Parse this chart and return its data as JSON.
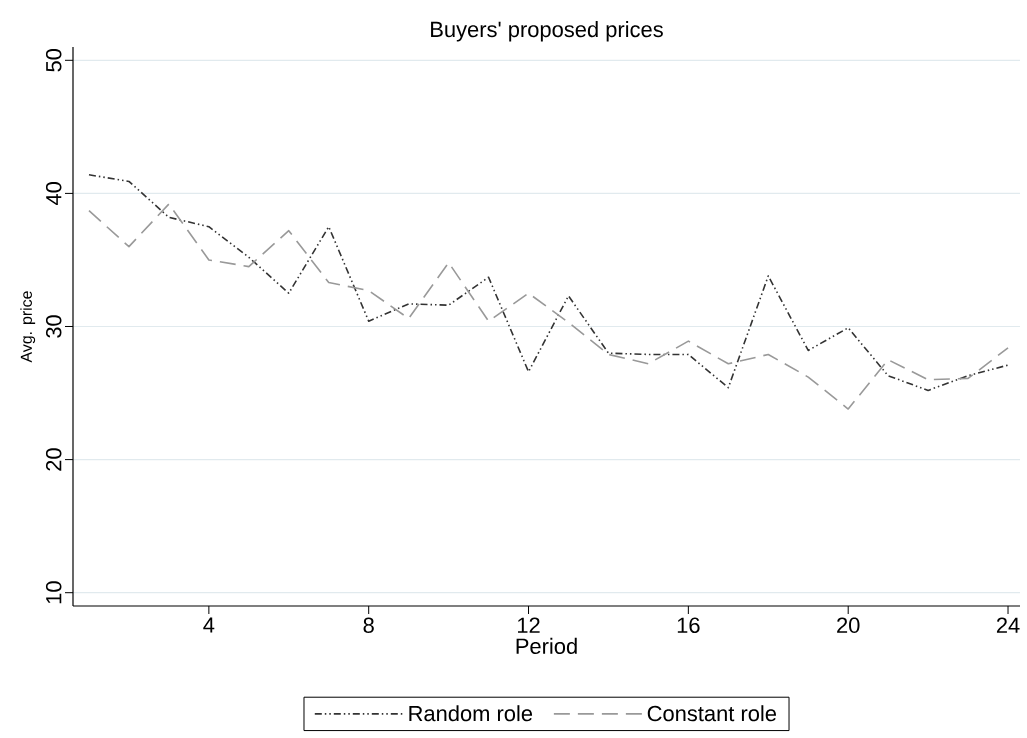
{
  "chart_data": {
    "type": "line",
    "title": "Buyers' proposed prices",
    "xlabel": "Period",
    "ylabel": "Avg. price",
    "x": [
      1,
      2,
      3,
      4,
      5,
      6,
      7,
      8,
      9,
      10,
      11,
      12,
      13,
      14,
      15,
      16,
      17,
      18,
      19,
      20,
      21,
      22,
      23,
      24
    ],
    "xlim": [
      0.6,
      24.3
    ],
    "ylim": [
      9,
      51
    ],
    "xticks": [
      4,
      8,
      12,
      16,
      20,
      24
    ],
    "yticks": [
      10,
      20,
      30,
      40,
      50
    ],
    "grid": "y",
    "legend": "bottom",
    "series": [
      {
        "name": "Random role",
        "color": "#333333",
        "line_style": "dotted",
        "values": [
          41.4,
          40.9,
          38.2,
          37.5,
          35.2,
          32.5,
          37.5,
          30.4,
          31.7,
          31.6,
          33.7,
          26.6,
          32.3,
          28.0,
          27.9,
          27.9,
          25.4,
          33.8,
          28.2,
          29.9,
          26.3,
          25.2,
          26.3,
          27.1
        ]
      },
      {
        "name": "Constant role",
        "color": "#999999",
        "line_style": "dashed",
        "values": [
          38.7,
          36.0,
          39.2,
          35.0,
          34.5,
          37.2,
          33.3,
          32.7,
          30.6,
          34.8,
          30.4,
          32.5,
          30.3,
          27.9,
          27.2,
          28.9,
          27.2,
          27.9,
          26.2,
          23.8,
          27.5,
          26.0,
          26.1,
          28.4
        ]
      }
    ]
  }
}
